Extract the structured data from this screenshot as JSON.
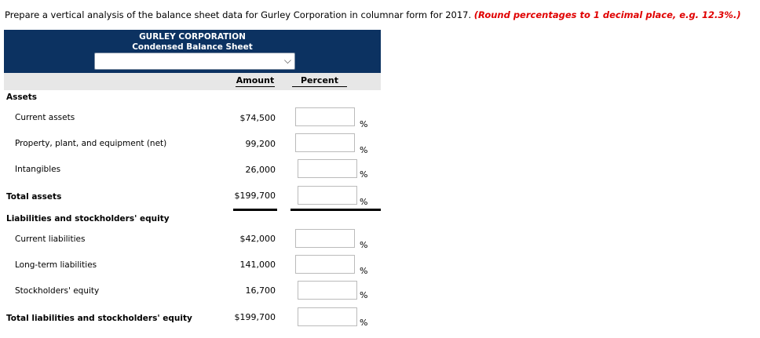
{
  "instruction": {
    "text": "Prepare a vertical analysis of the balance sheet data for Gurley Corporation in columnar form for 2017.",
    "hint": "(Round percentages to 1 decimal place, e.g. 12.3%.)"
  },
  "header": {
    "company": "GURLEY CORPORATION",
    "subtitle": "Condensed Balance Sheet",
    "period_select_value": ""
  },
  "columns": {
    "amount": "Amount",
    "percent": "Percent"
  },
  "percent_sign": "%",
  "sections": {
    "assets": "Assets",
    "liabilities": "Liabilities and stockholders' equity"
  },
  "rows": [
    {
      "label": "Current assets",
      "amount": "$74,500",
      "percent": ""
    },
    {
      "label": "Property, plant, and equipment (net)",
      "amount": "99,200",
      "percent": ""
    },
    {
      "label": "Intangibles",
      "amount": "26,000",
      "percent": ""
    },
    {
      "label": "Total assets",
      "amount": "$199,700",
      "percent": ""
    },
    {
      "label": "Current liabilities",
      "amount": "$42,000",
      "percent": ""
    },
    {
      "label": "Long-term liabilities",
      "amount": "141,000",
      "percent": ""
    },
    {
      "label": "Stockholders' equity",
      "amount": "16,700",
      "percent": ""
    },
    {
      "label": "Total liabilities and stockholders' equity",
      "amount": "$199,700",
      "percent": ""
    }
  ]
}
